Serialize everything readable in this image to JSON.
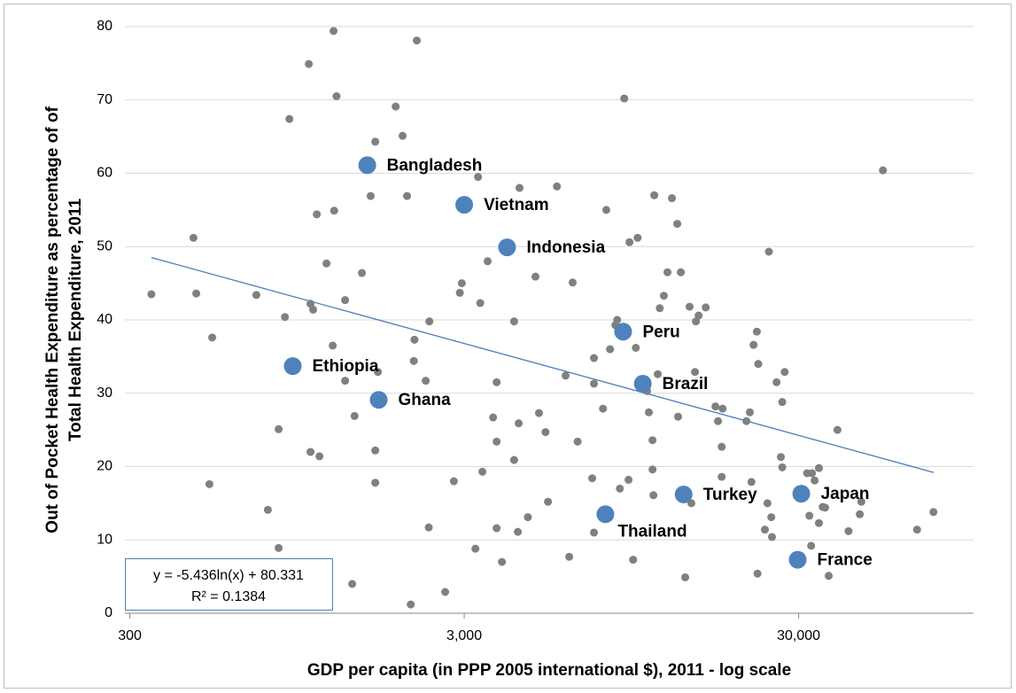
{
  "chart_data": {
    "type": "scatter",
    "ylabel": [
      "Out of Pocket Health Expenditure as percentage of of",
      "Total Health Expenditure, 2011"
    ],
    "xlabel": "GDP per capita (in PPP 2005 international $), 2011 - log scale",
    "xscale": "log",
    "xlim": [
      290,
      100000
    ],
    "xticks": [
      300,
      {
        "value": 3000,
        "label": "3,000"
      },
      {
        "value": 30000,
        "label": "30,000"
      }
    ],
    "ylim": [
      0,
      80
    ],
    "yticks": [
      0,
      10,
      20,
      30,
      40,
      50,
      60,
      70,
      80
    ],
    "grid": true,
    "series": [
      {
        "color": "#808080",
        "x": [
          348,
          465,
          474,
          529,
          519,
          717,
          776,
          836,
          836,
          873,
          900,
          1029,
          1041,
          1041,
          1060,
          1087,
          1107,
          1162,
          1213,
          1220,
          1225,
          1245,
          1321,
          1321,
          1387,
          1410,
          1483,
          1575,
          1626,
          1626,
          1626,
          1656,
          1871,
          1963,
          2024,
          2076,
          2120,
          2130,
          2164,
          2301,
          2350,
          2360,
          2631,
          2794,
          2910,
          2950,
          3240,
          3300,
          3350,
          3400,
          3525,
          3660,
          3750,
          3750,
          3750,
          3890,
          4230,
          4230,
          4340,
          4365,
          4390,
          4650,
          4900,
          5020,
          5250,
          5340,
          5680,
          6030,
          6180,
          6330,
          6550,
          7240,
          7330,
          7330,
          7330,
          7800,
          7980,
          8190,
          8490,
          8600,
          8760,
          9030,
          9300,
          9360,
          9600,
          9780,
          9900,
          10570,
          10700,
          10970,
          10970,
          11040,
          11100,
          11370,
          11530,
          11860,
          12160,
          12540,
          13010,
          13080,
          13330,
          13740,
          14160,
          14330,
          14700,
          14790,
          15070,
          15820,
          16920,
          17220,
          17660,
          17660,
          17770,
          20940,
          21440,
          21680,
          21990,
          22500,
          22600,
          22720,
          23780,
          24200,
          24450,
          24850,
          24970,
          25770,
          26550,
          26800,
          26800,
          27250,
          31800,
          32300,
          32900,
          32700,
          33500,
          34500,
          34500,
          35400,
          36000,
          36900,
          39200,
          42300,
          45700,
          46200,
          53600,
          67800,
          75900
        ],
        "values": [
          43.5,
          51.2,
          43.6,
          37.6,
          17.6,
          43.4,
          14.1,
          25.1,
          8.9,
          40.4,
          67.4,
          74.9,
          42.2,
          22.0,
          41.4,
          54.4,
          21.4,
          47.7,
          36.5,
          79.4,
          54.9,
          70.5,
          31.7,
          42.7,
          4.0,
          26.9,
          46.4,
          56.9,
          64.3,
          22.2,
          17.8,
          32.9,
          69.1,
          65.1,
          56.9,
          1.2,
          34.4,
          37.3,
          78.1,
          31.7,
          11.7,
          39.8,
          2.9,
          18.0,
          43.7,
          45.0,
          8.8,
          59.5,
          42.3,
          19.3,
          48.0,
          26.7,
          31.5,
          23.4,
          11.6,
          7.0,
          39.8,
          20.9,
          11.1,
          25.9,
          58.0,
          13.1,
          45.9,
          27.3,
          24.7,
          15.2,
          58.2,
          32.4,
          7.7,
          45.1,
          23.4,
          18.4,
          11.0,
          31.3,
          34.8,
          27.9,
          55.0,
          36.0,
          39.3,
          40.0,
          17.0,
          70.2,
          18.2,
          50.6,
          7.3,
          36.2,
          51.2,
          30.3,
          27.4,
          23.6,
          19.6,
          16.1,
          57.0,
          32.6,
          41.6,
          43.3,
          46.5,
          56.6,
          53.1,
          26.8,
          46.5,
          4.9,
          41.8,
          15.0,
          32.9,
          39.8,
          40.6,
          41.7,
          28.2,
          26.2,
          22.7,
          18.6,
          27.9,
          26.2,
          27.4,
          17.9,
          36.6,
          38.4,
          5.4,
          34.0,
          11.4,
          15.0,
          49.3,
          13.1,
          10.4,
          31.5,
          21.3,
          19.9,
          28.8,
          32.9,
          19.1,
          13.3,
          19.1,
          9.2,
          18.1,
          19.8,
          12.3,
          14.5,
          14.4,
          5.1,
          25.0,
          11.2,
          13.5,
          15.2,
          60.4,
          11.4,
          13.8
        ]
      },
      {
        "color": "#4f81bd",
        "x": [
          1539,
          3000,
          4030,
          8960,
          921,
          1665,
          10260,
          13590,
          30550,
          7930,
          29800
        ],
        "values": [
          61.1,
          55.7,
          49.9,
          38.4,
          33.7,
          29.1,
          31.3,
          16.2,
          16.3,
          13.5,
          7.3
        ],
        "labels": [
          "Bangladesh",
          "Vietnam",
          "Indonesia",
          "Peru",
          "Ethiopia",
          "Ghana",
          "Brazil",
          "Turkey",
          "Japan",
          "Thailand",
          "France"
        ]
      }
    ],
    "trendline": {
      "color": "#4a7ebb",
      "x": [
        348,
        76000
      ],
      "values": [
        48.5,
        19.2
      ],
      "equation": [
        "y = -5.436ln(x) + 80.331",
        "R² = 0.1384"
      ]
    }
  }
}
